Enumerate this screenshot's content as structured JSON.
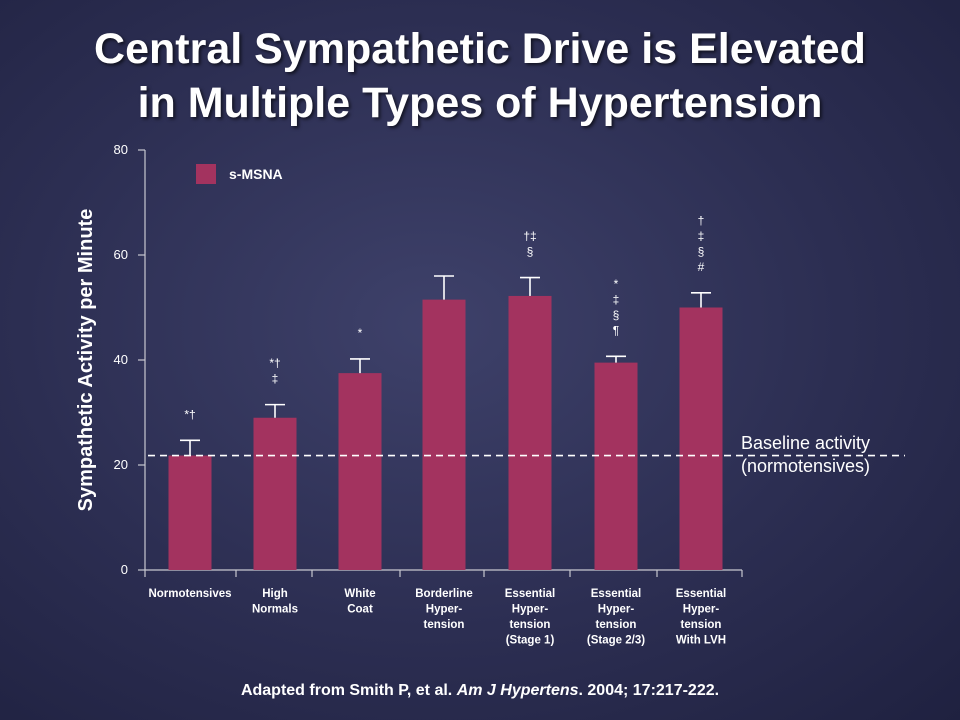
{
  "slide": {
    "title_line1": "Central Sympathetic Drive is Elevated",
    "title_line2": "in Multiple Types of Hypertension",
    "citation_prefix": "Adapted from Smith P, et al. ",
    "citation_journal": "Am J Hypertens",
    "citation_suffix": ". 2004; 17:217-222.",
    "baseline_label_line1": "Baseline activity",
    "baseline_label_line2": "(normotensives)"
  },
  "chart_data": {
    "type": "bar",
    "ylabel": "Sympathetic Activity per Minute",
    "ylim": [
      0,
      80
    ],
    "yticks": [
      0,
      20,
      40,
      60,
      80
    ],
    "grid": false,
    "legend_position": "top-left",
    "bar_color": "#a3335f",
    "series": [
      {
        "name": "s-MSNA",
        "values": [
          21.8,
          29,
          37.5,
          51.5,
          52.2,
          39.5,
          50
        ],
        "errors": [
          2.9,
          2.5,
          2.7,
          4.5,
          3.5,
          1.2,
          2.8
        ]
      }
    ],
    "categories": [
      [
        "Normotensives"
      ],
      [
        "High",
        "Normals"
      ],
      [
        "White",
        "Coat"
      ],
      [
        "Borderline",
        "Hyper-",
        "tension"
      ],
      [
        "Essential",
        "Hyper-",
        "tension",
        "(Stage 1)"
      ],
      [
        "Essential",
        "Hyper-",
        "tension",
        "(Stage 2/3)"
      ],
      [
        "Essential",
        "Hyper-",
        "tension",
        "With LVH"
      ]
    ],
    "significance": [
      [
        "*†"
      ],
      [
        "*†",
        "‡"
      ],
      [
        "*"
      ],
      [],
      [
        "†‡",
        "§"
      ],
      [
        "*",
        "‡",
        "§",
        "¶"
      ],
      [
        "†",
        "‡",
        "§",
        "#"
      ]
    ],
    "baseline": 21.8
  }
}
